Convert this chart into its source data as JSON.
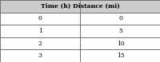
{
  "header_text": "Time (h) Distance (mi)",
  "col_labels": [
    "",
    ""
  ],
  "rows": [
    [
      "0",
      "0"
    ],
    [
      "1",
      "5"
    ],
    [
      "2",
      "10"
    ],
    [
      "3",
      "15"
    ]
  ],
  "header_bg": "#cccccc",
  "row_bg": "#ffffff",
  "border_color": "#555555",
  "header_fontsize": 5.5,
  "cell_fontsize": 5.5,
  "text_color": "#000000",
  "fig_bg": "#aaaaaa"
}
